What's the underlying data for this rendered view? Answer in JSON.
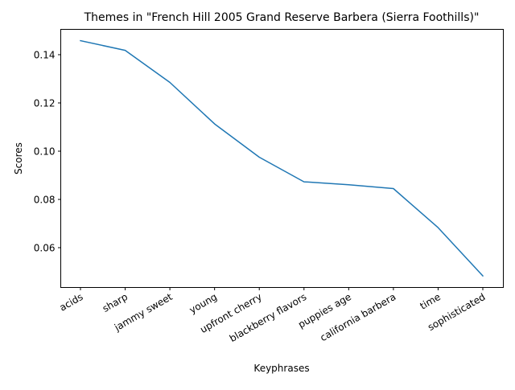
{
  "chart_data": {
    "type": "line",
    "title": "Themes in \"French Hill 2005 Grand Reserve Barbera (Sierra Foothills)\"",
    "xlabel": "Keyphrases",
    "ylabel": "Scores",
    "categories": [
      "acids",
      "sharp",
      "jammy sweet",
      "young",
      "upfront cherry",
      "blackberry flavors",
      "puppies age",
      "california barbera",
      "time",
      "sophisticated"
    ],
    "series": [
      {
        "values": [
          0.1458,
          0.1418,
          0.1285,
          0.1113,
          0.0975,
          0.0873,
          0.0861,
          0.0845,
          0.0683,
          0.0483
        ]
      }
    ],
    "ylim": [
      0.0435,
      0.1505
    ],
    "yticks": [
      0.06,
      0.08,
      0.1,
      0.12,
      0.14
    ],
    "ytick_labels": [
      "0.06",
      "0.08",
      "0.10",
      "0.12",
      "0.14"
    ],
    "grid": false,
    "line_color": "#1f77b4"
  }
}
